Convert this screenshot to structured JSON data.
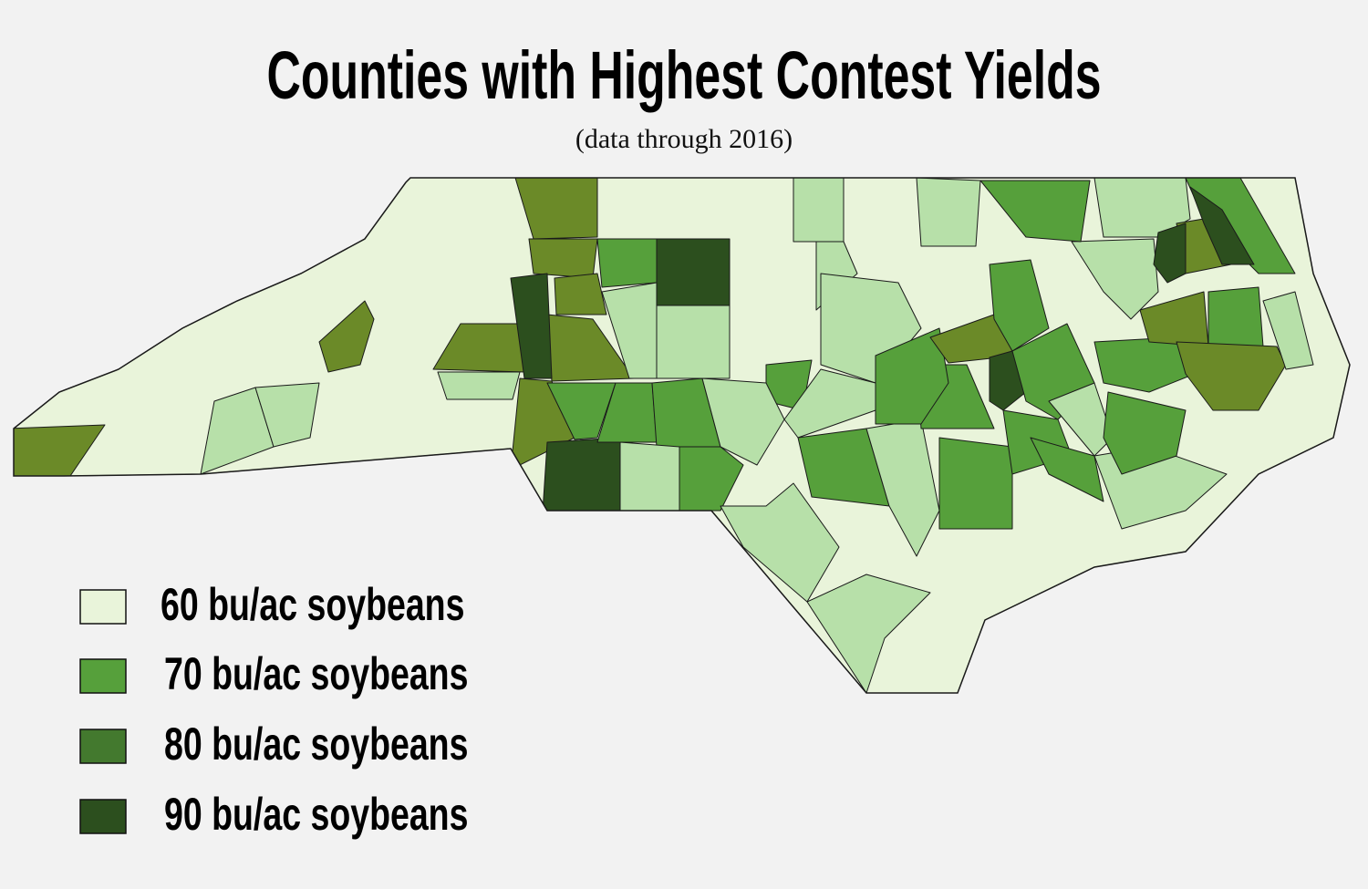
{
  "title": "Counties with Highest Contest Yields",
  "subtitle": "(data through 2016)",
  "legend": [
    {
      "label": "60 bu/ac soybeans",
      "color": "#e9f4da"
    },
    {
      "label": "70 bu/ac soybeans",
      "color": "#56a03b"
    },
    {
      "label": "80 bu/ac soybeans",
      "color": "#43792e"
    },
    {
      "label": "90 bu/ac soybeans",
      "color": "#2c4f1e"
    }
  ]
}
